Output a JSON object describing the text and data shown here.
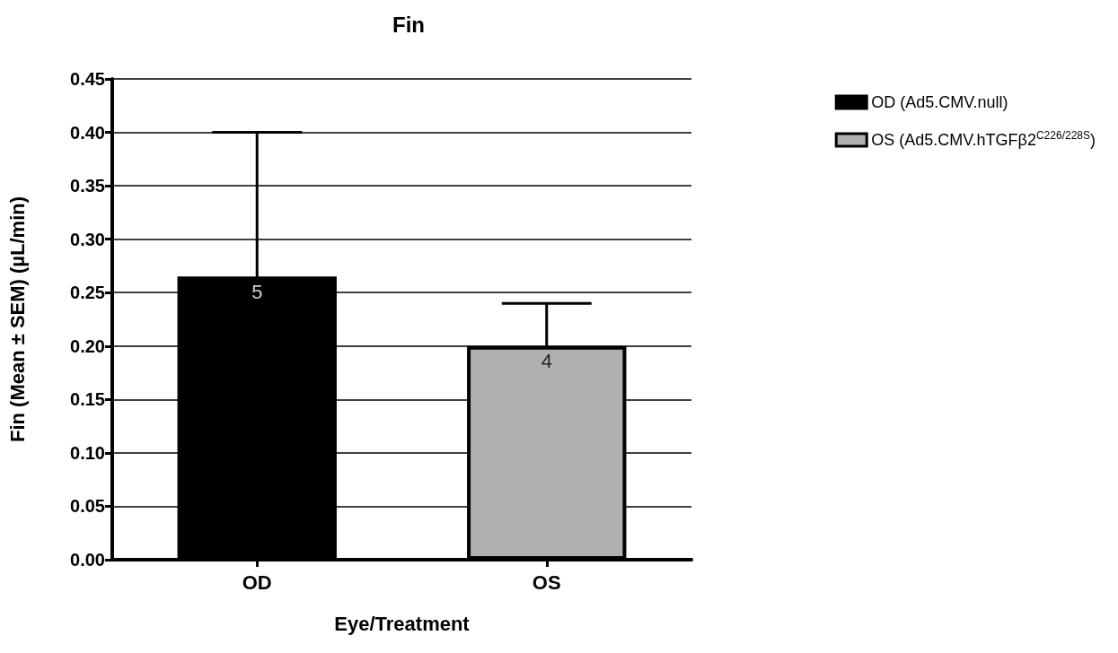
{
  "chart_data": {
    "type": "bar",
    "title": "Fin",
    "xlabel": "Eye/Treatment",
    "ylabel": "Fin (Mean ± SEM) (µL/min)",
    "categories": [
      "OD",
      "OS"
    ],
    "series": [
      {
        "name": "OD (Ad5.CMV.null)",
        "color": "#000000",
        "values": [
          0.265,
          null
        ],
        "errors": [
          0.135,
          null
        ]
      },
      {
        "name": "OS (Ad5.CMV.hTGFβ2$^{C226/228S}$)",
        "color": "#b0b0b0",
        "values": [
          null,
          0.2
        ],
        "errors": [
          null,
          0.04
        ]
      }
    ],
    "ylim": [
      0,
      0.45
    ],
    "yticks": [
      {
        "value": 0,
        "label": "0.00"
      },
      {
        "value": 0.05,
        "label": "0.05"
      },
      {
        "value": 0.1,
        "label": "0.10"
      },
      {
        "value": 0.15,
        "label": "0.15"
      },
      {
        "value": 0.2,
        "label": "0.20"
      },
      {
        "value": 0.25,
        "label": "0.25"
      },
      {
        "value": 0.3,
        "label": "0.30"
      },
      {
        "value": 0.35,
        "label": "0.35"
      },
      {
        "value": 0.4,
        "label": "0.40"
      },
      {
        "value": 0.45,
        "label": "0.45"
      }
    ],
    "grid": "y",
    "legend": "top right",
    "annotations": [
      "5",
      "4"
    ]
  }
}
